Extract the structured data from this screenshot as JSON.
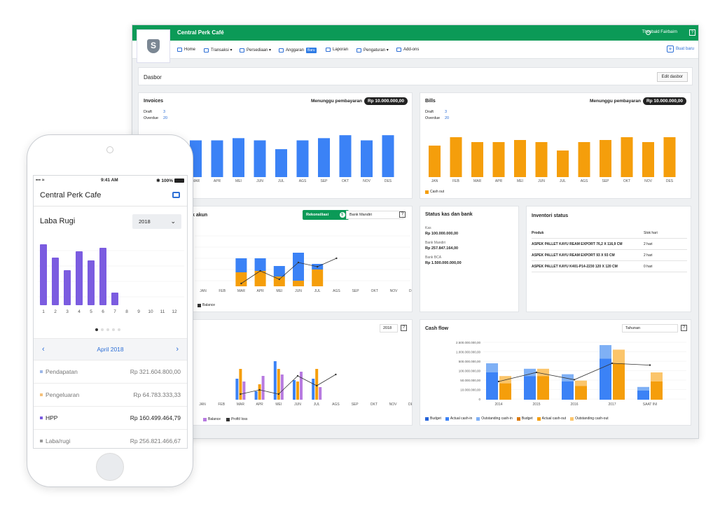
{
  "topbar": {
    "company": "Central Perk Café",
    "user": "Theobald Fairbairn",
    "help": "?"
  },
  "logo_letter": "S",
  "nav": {
    "items": [
      "Home",
      "Transaksi ▾",
      "Persediaan ▾",
      "Anggaran",
      "Laporan",
      "Pengaturan ▾",
      "Add-ons"
    ],
    "new_badge": "Baru",
    "create": "Buat baru"
  },
  "dashboard": {
    "title": "Dasbor",
    "edit": "Edit dasbor"
  },
  "invoices": {
    "title": "Invoices",
    "pending_label": "Menunggu pembayaran",
    "pending_value": "Rp 10.000.000,00",
    "draft_label": "Draft",
    "draft_value": "3",
    "overdue_label": "Overdue",
    "overdue_value": "20"
  },
  "bills": {
    "title": "Bills",
    "pending_label": "Menunggu pembayaran",
    "pending_value": "Rp 10.000.000,00",
    "draft_label": "Draft",
    "draft_value": "3",
    "overdue_label": "Overdue",
    "overdue_value": "20",
    "legend": "Cash out"
  },
  "account": {
    "title": "k akun",
    "reconcile": "Rekonsiliasi",
    "reconcile_count": "5",
    "bank": "Bank Mandiri",
    "legend": "Balance"
  },
  "cashbank": {
    "title": "Status kas dan bank",
    "rows": [
      {
        "label": "Kas",
        "amount": "Rp 100.000.000,00"
      },
      {
        "label": "Bank Mandiri",
        "amount": "Rp 257.847.164,00"
      },
      {
        "label": "Bank BCA",
        "amount": "Rp 1.500.000.000,00"
      }
    ]
  },
  "inventory": {
    "title": "Inventori status",
    "head": [
      "Produk",
      "Stok hari"
    ],
    "rows": [
      [
        "ASPEK PALLET KAYU REAM EXPORT 76,2 X 116,9 CM",
        "2 hari"
      ],
      [
        "ASPEK PALLET KAYU REAM EXPORT 93 X 93 CM",
        "2 hari"
      ],
      [
        "ASPEK PALLET KAYU K401-P14-2230 120 X 120 CM",
        "0 hari"
      ]
    ]
  },
  "profit": {
    "year": "2018",
    "legend": [
      "Balance",
      "Profit/ loss"
    ]
  },
  "cashflow": {
    "title": "Cash flow",
    "period": "Tahunan",
    "legend": [
      "Budget",
      "Actual cash-in",
      "Outstanding cash-in",
      "Budget",
      "Actual cash-out",
      "Outstanding cash-out"
    ]
  },
  "phone": {
    "carrier": "▪▪▪ ≈",
    "time": "9:41 AM",
    "battery": "✱ 100%",
    "title": "Central Perk Cafe",
    "section": "Laba Rugi",
    "year": "2018",
    "month": "April 2018",
    "rows": [
      {
        "label": "Pendapatan",
        "value": "Rp 321.604.800,00",
        "color": "#9db8e8"
      },
      {
        "label": "Pengeluaran",
        "value": "Rp 64.783.333,33",
        "color": "#f5c07a"
      },
      {
        "label": "HPP",
        "value": "Rp 160.499.464,79",
        "color": "#7b5ce0"
      },
      {
        "label": "Laba/rugi",
        "value": "Rp 256.821.466,67",
        "color": "#999999"
      }
    ]
  },
  "chart_data": [
    {
      "type": "bar",
      "categories": [
        "JAN",
        "FEB",
        "MAR",
        "APR",
        "MEI",
        "JUN",
        "JUL",
        "AGS",
        "SEP",
        "OKT",
        "NOV",
        "DES"
      ],
      "values": [
        55,
        50,
        50,
        50,
        53,
        50,
        38,
        50,
        53,
        57,
        50,
        57
      ],
      "color": "#3b82f6"
    },
    {
      "type": "bar",
      "categories": [
        "JAN",
        "FEB",
        "MAR",
        "APR",
        "MEI",
        "JUN",
        "JUL",
        "AGS",
        "SEP",
        "OKT",
        "NOV",
        "DES"
      ],
      "values": [
        45,
        57,
        50,
        50,
        53,
        50,
        38,
        50,
        53,
        57,
        50,
        57
      ],
      "series": [
        {
          "name": "Cash out",
          "values": [
            45,
            57,
            50,
            50,
            53,
            50,
            38,
            50,
            53,
            57,
            50,
            57
          ]
        }
      ],
      "color": "#f59e0b"
    },
    {
      "type": "bar",
      "categories": [
        "JAN",
        "FEB",
        "MAR",
        "APR",
        "MEI",
        "JUN",
        "JUL",
        "AGS",
        "SEP",
        "OKT",
        "NOV",
        "DES"
      ],
      "series": [
        {
          "name": "",
          "values": [
            0,
            0,
            20,
            18,
            15,
            40,
            8,
            0,
            0,
            0,
            0,
            0
          ]
        },
        {
          "name": "",
          "values": [
            0,
            0,
            20,
            22,
            14,
            8,
            24,
            0,
            0,
            0,
            0,
            0
          ]
        },
        {
          "name": "Balance",
          "values": [
            0,
            0,
            4,
            22,
            10,
            34,
            28,
            40,
            null,
            null,
            null,
            null
          ]
        }
      ]
    },
    {
      "type": "bar",
      "categories": [
        "JAN",
        "FEB",
        "MAR",
        "APR",
        "MEI",
        "JUN",
        "JUL",
        "AGS",
        "SEP",
        "OKT",
        "NOV",
        "DES"
      ],
      "series": [
        {
          "name": "",
          "values": [
            0,
            0,
            30,
            12,
            55,
            28,
            30,
            0,
            0,
            0,
            0,
            0
          ]
        },
        {
          "name": "",
          "values": [
            0,
            0,
            44,
            22,
            44,
            26,
            44,
            0,
            0,
            0,
            0,
            0
          ]
        },
        {
          "name": "Balance",
          "values": [
            0,
            0,
            26,
            34,
            36,
            40,
            18,
            0,
            0,
            0,
            0,
            0
          ]
        },
        {
          "name": "Profit/ loss",
          "values": [
            0,
            0,
            8,
            14,
            8,
            34,
            20,
            36,
            null,
            null,
            null,
            null
          ]
        }
      ]
    },
    {
      "type": "bar",
      "categories": [
        "2014",
        "2015",
        "2016",
        "2017",
        "SAAT INI"
      ],
      "y_ticks": [
        "2.500.000.000,00",
        "1.000.000.000,00",
        "500.000.000,00",
        "100.000.000,00",
        "50.000.000,00",
        "10.000.000,00",
        "0"
      ],
      "series": [
        {
          "name": "Actual cash-in",
          "values": [
            30,
            26,
            20,
            45,
            10
          ]
        },
        {
          "name": "Outstanding cash-in",
          "values": [
            10,
            8,
            8,
            15,
            4
          ]
        },
        {
          "name": "Actual cash-out",
          "values": [
            18,
            26,
            15,
            40,
            20
          ]
        },
        {
          "name": "Outstanding cash-out",
          "values": [
            8,
            8,
            6,
            15,
            10
          ]
        },
        {
          "name": "Budget",
          "values": [
            20,
            30,
            22,
            40,
            38
          ]
        }
      ]
    },
    {
      "type": "bar",
      "categories": [
        "1",
        "2",
        "3",
        "4",
        "5",
        "6",
        "7",
        "8",
        "9",
        "10",
        "11",
        "12"
      ],
      "values": [
        87,
        68,
        50,
        77,
        64,
        82,
        18,
        0,
        0,
        0,
        0,
        0
      ],
      "color": "#7b5ce0"
    }
  ]
}
